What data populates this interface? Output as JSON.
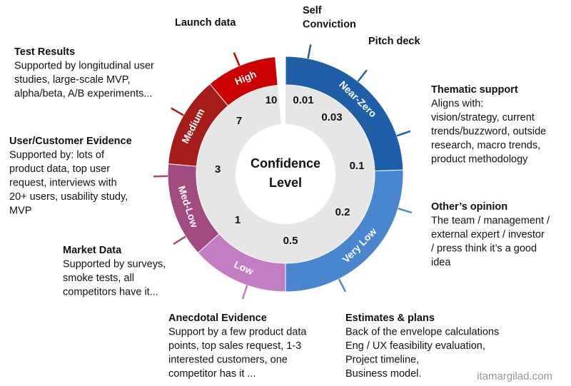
{
  "center_label": [
    "Confidence",
    "Level"
  ],
  "segments": [
    {
      "label": "Near-Zero",
      "color": "#1f5fa8"
    },
    {
      "label": "Very Low",
      "color": "#4a86d0"
    },
    {
      "label": "Low",
      "color": "#c27cc1"
    },
    {
      "label": "Med-Low",
      "color": "#a24a7f"
    },
    {
      "label": "Medium",
      "color": "#a51c18"
    },
    {
      "label": "High",
      "color": "#cc0000"
    }
  ],
  "scale": [
    0.01,
    0.03,
    0.1,
    0.2,
    0.5,
    1,
    3,
    7,
    10
  ],
  "annotations": [
    {
      "title_lines": [
        "Launch data"
      ],
      "description": []
    },
    {
      "title_lines": [
        "Self",
        "Conviction"
      ],
      "description": []
    },
    {
      "title_lines": [
        "Pitch deck"
      ],
      "description": []
    },
    {
      "title_lines": [
        "Thematic support"
      ],
      "description": [
        "Aligns with:",
        "vision/strategy, current",
        "trends/buzzword, outside",
        "research, macro trends,",
        "product methodology"
      ]
    },
    {
      "title_lines": [
        "Other’s opinion"
      ],
      "description": [
        "The team / management /",
        "external expert /  investor",
        "/ press think it’s a good",
        "idea"
      ]
    },
    {
      "title_lines": [
        "Estimates & plans"
      ],
      "description": [
        "Back of the envelope calculations",
        "Eng / UX feasibility evaluation,",
        "Project timeline,",
        "Business model."
      ]
    },
    {
      "title_lines": [
        "Anecdotal Evidence"
      ],
      "description": [
        "Support by a few product data",
        "points, top sales request, 1-3",
        "interested customers, one",
        "competitor has it ..."
      ]
    },
    {
      "title_lines": [
        "Market Data"
      ],
      "description": [
        "Supported by surveys,",
        "smoke tests, all",
        "competitors have it..."
      ]
    },
    {
      "title_lines": [
        "User/Customer Evidence"
      ],
      "description": [
        "Supported by: lots of",
        "product data, top user",
        "request, interviews with",
        "20+ users, usability study,",
        "MVP"
      ]
    },
    {
      "title_lines": [
        "Test Results"
      ],
      "description": [
        "Supported by longitudinal user",
        "studies, large-scale MVP,",
        "alpha/beta, A/B experiments..."
      ]
    }
  ],
  "watermark": "itamargilad.com"
}
